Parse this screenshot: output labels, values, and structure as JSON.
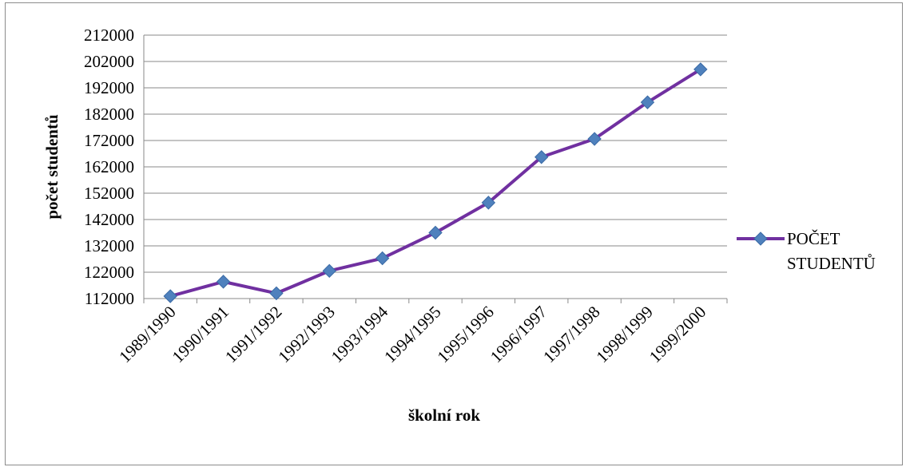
{
  "colors": {
    "line": "#7030A0",
    "marker": "#4F81BD",
    "marker_stroke": "#3A6AA5"
  },
  "chart_data": {
    "type": "line",
    "xlabel": "školní rok",
    "ylabel": "počet studentů",
    "categories": [
      "1989/1990",
      "1990/1991",
      "1991/1992",
      "1992/1993",
      "1993/1994",
      "1994/1995",
      "1995/1996",
      "1996/1997",
      "1997/1998",
      "1998/1999",
      "1999/2000"
    ],
    "series": [
      {
        "name": "POČET STUDENTŮ",
        "name_lines": [
          "POČET",
          "STUDENTŮ"
        ],
        "values": [
          112900,
          118400,
          114000,
          122500,
          127300,
          137000,
          148400,
          165700,
          172600,
          186500,
          199000
        ]
      }
    ],
    "ylim": [
      112000,
      212000
    ],
    "yticks": [
      "112000",
      "122000",
      "132000",
      "142000",
      "152000",
      "162000",
      "172000",
      "182000",
      "192000",
      "202000",
      "212000"
    ],
    "grid": "horizontal",
    "legend": "right",
    "marker": "diamond"
  }
}
